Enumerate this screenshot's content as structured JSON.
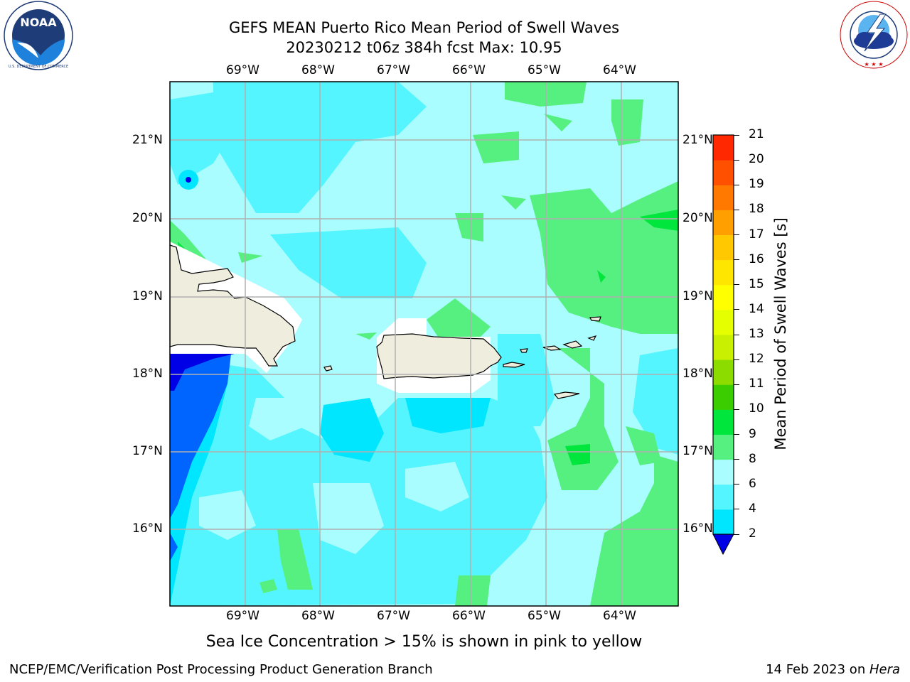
{
  "title": {
    "line1": "GEFS MEAN Puerto Rico Mean Period of Swell Waves",
    "line2": "20230212 t06z 384h fcst   Max: 10.95"
  },
  "logos": {
    "left": {
      "name": "NOAA",
      "ring_text": "NATIONAL OCEANIC AND ATMOSPHERIC ADMINISTRATION · U.S. DEPARTMENT OF COMMERCE"
    },
    "right": {
      "name": "NATIONAL WEATHER SERVICE"
    }
  },
  "map": {
    "lon_labels": [
      "69°W",
      "68°W",
      "67°W",
      "66°W",
      "65°W",
      "64°W"
    ],
    "lat_labels": [
      "21°N",
      "20°N",
      "19°N",
      "18°N",
      "17°N",
      "16°N"
    ],
    "land_color": "#efedde",
    "coast_color": "#000000",
    "grid_color": "#b0b0b0"
  },
  "colorbar": {
    "label": "Mean Period of Swell Waves [s]",
    "ticks": [
      "2",
      "4",
      "6",
      "8",
      "9",
      "10",
      "11",
      "12",
      "13",
      "14",
      "15",
      "16",
      "17",
      "18",
      "19",
      "20",
      "21"
    ],
    "colors": [
      "#0064ff",
      "#00e6ff",
      "#55f5ff",
      "#aafdff",
      "#55f080",
      "#00e63c",
      "#3ccd00",
      "#8cdc00",
      "#c8f000",
      "#e6ff00",
      "#ffff00",
      "#ffe600",
      "#ffc800",
      "#ffa000",
      "#ff7800",
      "#ff5000",
      "#ff2800",
      "#ff0000"
    ],
    "extend_color": "#0000e6"
  },
  "caption": "Sea Ice Concentration > 15% is shown in pink to yellow",
  "footer": {
    "left": "NCEP/EMC/Verification Post Processing Product Generation Branch",
    "date": "14 Feb 2023 on ",
    "machine": "Hera"
  }
}
